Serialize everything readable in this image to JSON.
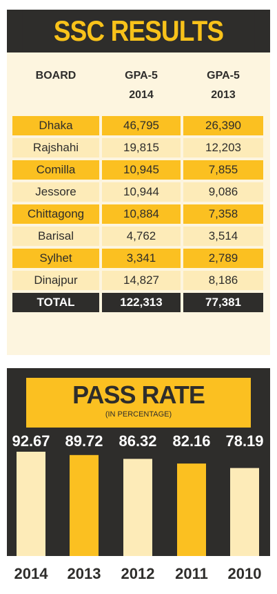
{
  "ssc": {
    "title": "SSC RESULTS",
    "headers": [
      "BOARD",
      "GPA-5\n2014",
      "GPA-5\n2013"
    ],
    "rows": [
      [
        "Dhaka",
        "46,795",
        "26,390"
      ],
      [
        "Rajshahi",
        "19,815",
        "12,203"
      ],
      [
        "Comilla",
        "10,945",
        "7,855"
      ],
      [
        "Jessore",
        "10,944",
        "9,086"
      ],
      [
        "Chittagong",
        "10,884",
        "7,358"
      ],
      [
        "Barisal",
        "4,762",
        "3,514"
      ],
      [
        "Sylhet",
        "3,341",
        "2,789"
      ],
      [
        "Dinajpur",
        "14,827",
        "8,186"
      ]
    ],
    "total": [
      "TOTAL",
      "122,313",
      "77,381"
    ]
  },
  "chart_data": {
    "type": "bar",
    "title": "PASS RATE",
    "subtitle": "(IN PERCENTAGE)",
    "categories": [
      "2014",
      "2013",
      "2012",
      "2011",
      "2010"
    ],
    "values": [
      92.67,
      89.72,
      86.32,
      82.16,
      78.19
    ],
    "value_labels": [
      "92.67",
      "89.72",
      "86.32",
      "82.16",
      "78.19"
    ],
    "xlabel": "",
    "ylabel": "",
    "grid": false,
    "colors": [
      "#fdebb8",
      "#fbc021",
      "#fdebb8",
      "#fbc021",
      "#fdebb8"
    ]
  },
  "colors": {
    "dark": "#2e2d2b",
    "accent": "#fbc021",
    "light": "#fdebb8",
    "background": "#fdf5df"
  }
}
